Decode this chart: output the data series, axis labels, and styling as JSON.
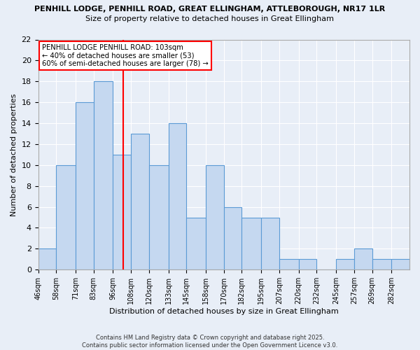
{
  "title1": "PENHILL LODGE, PENHILL ROAD, GREAT ELLINGHAM, ATTLEBOROUGH, NR17 1LR",
  "title2": "Size of property relative to detached houses in Great Ellingham",
  "xlabel": "Distribution of detached houses by size in Great Ellingham",
  "ylabel": "Number of detached properties",
  "bin_edges": [
    46,
    58,
    71,
    83,
    96,
    108,
    120,
    133,
    145,
    158,
    170,
    182,
    195,
    207,
    220,
    232,
    245,
    257,
    269,
    282,
    294
  ],
  "heights": [
    2,
    10,
    16,
    18,
    11,
    13,
    10,
    14,
    5,
    10,
    6,
    5,
    5,
    1,
    1,
    0,
    1,
    2,
    1,
    1
  ],
  "bar_color": "#c5d8f0",
  "bar_edge_color": "#5b9bd5",
  "red_line_x": 103,
  "annotation_title": "PENHILL LODGE PENHILL ROAD: 103sqm",
  "annotation_line1": "← 40% of detached houses are smaller (53)",
  "annotation_line2": "60% of semi-detached houses are larger (78) →",
  "ylim": [
    0,
    22
  ],
  "yticks": [
    0,
    2,
    4,
    6,
    8,
    10,
    12,
    14,
    16,
    18,
    20,
    22
  ],
  "background_color": "#e8eef7",
  "footer1": "Contains HM Land Registry data © Crown copyright and database right 2025.",
  "footer2": "Contains public sector information licensed under the Open Government Licence v3.0."
}
